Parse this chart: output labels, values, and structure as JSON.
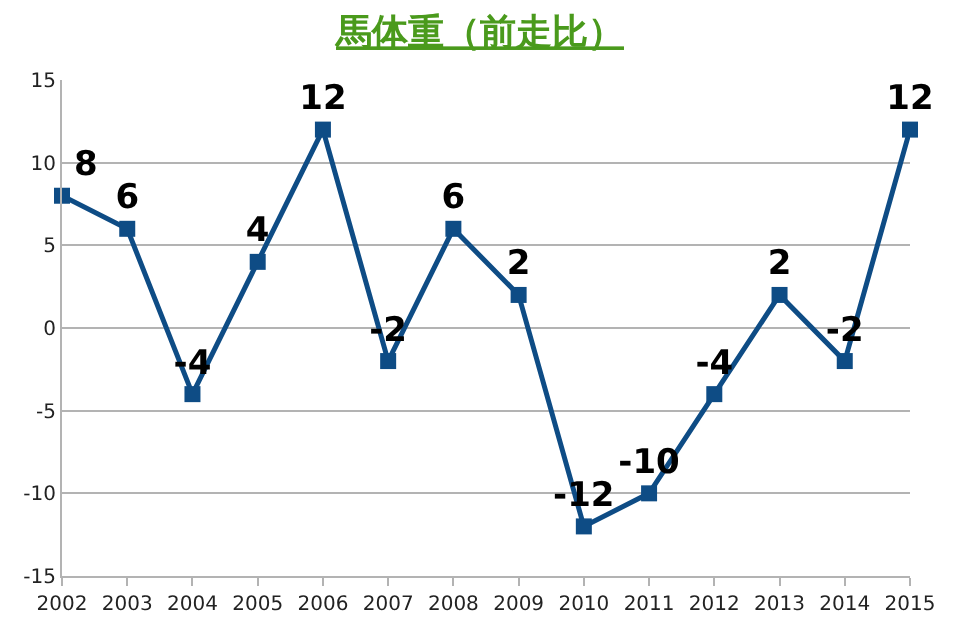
{
  "chart_data": {
    "type": "line",
    "title": "馬体重（前走比）",
    "categories": [
      "2002",
      "2003",
      "2004",
      "2005",
      "2006",
      "2007",
      "2008",
      "2009",
      "2010",
      "2011",
      "2012",
      "2013",
      "2014",
      "2015"
    ],
    "series": [
      {
        "color": "#0e4c85",
        "values": [
          8,
          6,
          -4,
          4,
          12,
          -2,
          6,
          2,
          -12,
          -10,
          -4,
          2,
          -2,
          12
        ]
      }
    ],
    "ylim": [
      -15,
      15
    ],
    "yticks": [
      -15,
      -10,
      -5,
      0,
      5,
      10,
      15
    ],
    "grid": "y",
    "marker": "square",
    "line_style": "solid",
    "data_labels": true,
    "legend": false
  }
}
